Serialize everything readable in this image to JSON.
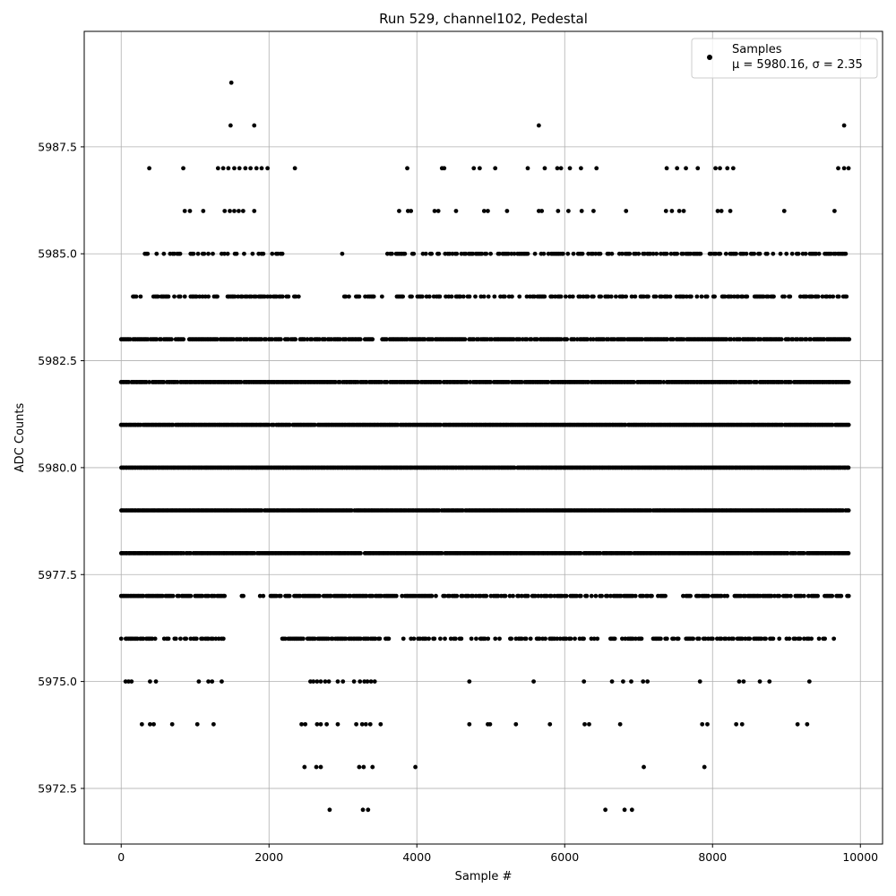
{
  "chart_data": {
    "type": "scatter",
    "title": "Run 529, channel102, Pedestal",
    "xlabel": "Sample #",
    "ylabel": "ADC Counts",
    "xlim": [
      -500,
      10300
    ],
    "ylim": [
      5971.2,
      5990.2
    ],
    "x_ticks": [
      0,
      2000,
      4000,
      6000,
      8000,
      10000
    ],
    "y_ticks": [
      5972.5,
      5975.0,
      5977.5,
      5980.0,
      5982.5,
      5985.0,
      5987.5
    ],
    "x_tick_labels": [
      "0",
      "2000",
      "4000",
      "6000",
      "8000",
      "10000"
    ],
    "y_tick_labels": [
      "5972.5",
      "5975.0",
      "5977.5",
      "5980.0",
      "5982.5",
      "5985.0",
      "5987.5"
    ],
    "grid": true,
    "legend": {
      "placement": "top-right",
      "series_name": "Samples",
      "stats_text": "μ = 5980.16, σ = 2.35"
    },
    "marker_color": "#000000",
    "n_samples": 9850,
    "levels": [
      {
        "y": 5989,
        "x": [
          1490
        ]
      },
      {
        "y": 5988,
        "x": [
          1480,
          1800,
          5650,
          9780
        ]
      },
      {
        "y": 5987,
        "x": [
          380,
          840,
          1310,
          1380,
          1450,
          1530,
          1600,
          1680,
          1750,
          1830,
          1900,
          1980,
          2350,
          3870,
          4340,
          4370,
          4770,
          4850,
          5060,
          5500,
          5730,
          5900,
          5950,
          6070,
          6220,
          6430,
          7380,
          7520,
          7640,
          7800,
          8040,
          8100,
          8200,
          8280,
          9700,
          9780,
          9840
        ]
      },
      {
        "y": 5986,
        "x": [
          860,
          930,
          1110,
          1400,
          1470,
          1530,
          1590,
          1650,
          1800,
          3760,
          3880,
          3920,
          4240,
          4290,
          4530,
          4910,
          4960,
          5220,
          5650,
          5690,
          5910,
          6050,
          6230,
          6390,
          6830,
          7370,
          7450,
          7550,
          7610,
          8070,
          8120,
          8240,
          8970,
          9650
        ]
      },
      {
        "y": 5985,
        "trend_cutoff": 0.55,
        "ranges": [
          [
            300,
            2200,
            0.45
          ],
          [
            2990,
            2990,
            1
          ],
          [
            3600,
            9850,
            0.55
          ]
        ]
      },
      {
        "y": 5984,
        "ranges": [
          [
            160,
            2450,
            0.5
          ],
          [
            2980,
            3450,
            0.3
          ],
          [
            3510,
            9850,
            0.5
          ]
        ]
      },
      {
        "y": 5983,
        "ranges": [
          [
            0,
            3400,
            0.8
          ],
          [
            3530,
            9850,
            0.85
          ]
        ]
      },
      {
        "y": 5982,
        "ranges": [
          [
            0,
            9850,
            0.95
          ]
        ]
      },
      {
        "y": 5981,
        "ranges": [
          [
            0,
            9850,
            0.98
          ]
        ]
      },
      {
        "y": 5980,
        "ranges": [
          [
            0,
            9850,
            0.99
          ]
        ]
      },
      {
        "y": 5979,
        "ranges": [
          [
            0,
            9850,
            0.99
          ]
        ]
      },
      {
        "y": 5978,
        "ranges": [
          [
            0,
            9850,
            0.97
          ]
        ]
      },
      {
        "y": 5977,
        "ranges": [
          [
            0,
            1400,
            0.8
          ],
          [
            1630,
            1700,
            0.8
          ],
          [
            1880,
            1930,
            0.8
          ],
          [
            2020,
            4200,
            0.8
          ],
          [
            4200,
            7400,
            0.65
          ],
          [
            7560,
            9850,
            0.7
          ]
        ]
      },
      {
        "y": 5976,
        "ranges": [
          [
            0,
            1400,
            0.6
          ],
          [
            2180,
            3650,
            0.8
          ],
          [
            3800,
            9700,
            0.45
          ]
        ]
      },
      {
        "y": 5975,
        "x": [
          60,
          100,
          140,
          390,
          470,
          1050,
          1180,
          1230,
          1360,
          2560,
          2600,
          2650,
          2700,
          2760,
          2810,
          2930,
          3000,
          3150,
          3230,
          3290,
          3330,
          3380,
          3430,
          4710,
          5580,
          6260,
          6640,
          6790,
          6900,
          7060,
          7120,
          7830,
          8360,
          8420,
          8640,
          8770,
          9310
        ]
      },
      {
        "y": 5974,
        "x": [
          280,
          390,
          440,
          690,
          1030,
          1250,
          2440,
          2490,
          2650,
          2700,
          2780,
          2930,
          3180,
          3260,
          3310,
          3370,
          3510,
          4710,
          4960,
          4990,
          5340,
          5800,
          6270,
          6330,
          6750,
          7860,
          7930,
          8320,
          8400,
          9150,
          9280
        ]
      },
      {
        "y": 5973,
        "x": [
          2480,
          2640,
          2700,
          3220,
          3280,
          3400,
          3980,
          7070,
          7890
        ]
      },
      {
        "y": 5972,
        "x": [
          2820,
          3270,
          3340,
          6550,
          6810,
          6910
        ]
      }
    ]
  }
}
